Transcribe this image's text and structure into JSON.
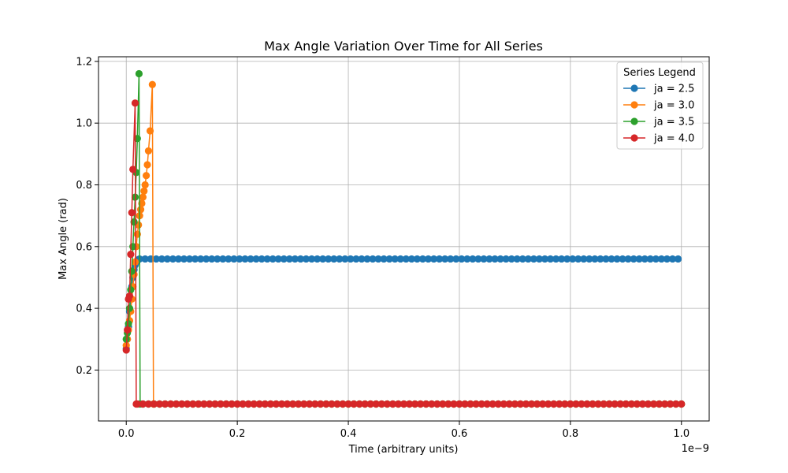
{
  "chart_data": {
    "type": "line",
    "title": "Max Angle Variation Over Time for All Series",
    "xlabel": "Time (arbitrary units)",
    "ylabel": "Max Angle (rad)",
    "x_offset_label": "1e−9",
    "xlim": [
      -0.05,
      1.05
    ],
    "ylim": [
      0.035,
      1.215
    ],
    "xticks": [
      0.0,
      0.2,
      0.4,
      0.6,
      0.8,
      1.0
    ],
    "xtick_labels": [
      "0.0",
      "0.2",
      "0.4",
      "0.6",
      "0.8",
      "1.0"
    ],
    "yticks": [
      0.2,
      0.4,
      0.6,
      0.8,
      1.0,
      1.2
    ],
    "ytick_labels": [
      "0.2",
      "0.4",
      "0.6",
      "0.8",
      "1.0",
      "1.2"
    ],
    "grid": true,
    "legend": {
      "title": "Series Legend",
      "placement": "top-right"
    },
    "series": [
      {
        "name": "ja = 2.5",
        "color": "#1f77b4",
        "points": [
          [
            0.0,
            0.27
          ],
          [
            0.002,
            0.3
          ],
          [
            0.004,
            0.34
          ],
          [
            0.006,
            0.39
          ],
          [
            0.008,
            0.43
          ],
          [
            0.01,
            0.47
          ],
          [
            0.012,
            0.5
          ],
          [
            0.014,
            0.525
          ],
          [
            0.016,
            0.54
          ],
          [
            0.018,
            0.55
          ],
          [
            0.02,
            0.555
          ],
          [
            0.022,
            0.558
          ]
        ],
        "plateau": {
          "x_start": 0.024,
          "x_end": 1.0,
          "step": 0.01,
          "y": 0.56
        }
      },
      {
        "name": "ja = 3.0",
        "color": "#ff7f0e",
        "points": [
          [
            0.0,
            0.28
          ],
          [
            0.002,
            0.3
          ],
          [
            0.004,
            0.33
          ],
          [
            0.006,
            0.36
          ],
          [
            0.008,
            0.39
          ],
          [
            0.01,
            0.43
          ],
          [
            0.012,
            0.47
          ],
          [
            0.014,
            0.51
          ],
          [
            0.016,
            0.55
          ],
          [
            0.018,
            0.6
          ],
          [
            0.02,
            0.64
          ],
          [
            0.022,
            0.67
          ],
          [
            0.024,
            0.7
          ],
          [
            0.026,
            0.72
          ],
          [
            0.028,
            0.74
          ],
          [
            0.03,
            0.76
          ],
          [
            0.032,
            0.78
          ],
          [
            0.034,
            0.8
          ],
          [
            0.036,
            0.83
          ],
          [
            0.038,
            0.865
          ],
          [
            0.04,
            0.91
          ],
          [
            0.043,
            0.975
          ],
          [
            0.047,
            1.125
          ],
          [
            0.049,
            0.09
          ]
        ],
        "plateau": {
          "x_start": 0.05,
          "x_end": 1.0,
          "step": 0.01,
          "y": 0.09
        }
      },
      {
        "name": "ja = 3.5",
        "color": "#2ca02c",
        "points": [
          [
            0.0,
            0.3
          ],
          [
            0.002,
            0.32
          ],
          [
            0.004,
            0.35
          ],
          [
            0.006,
            0.4
          ],
          [
            0.008,
            0.46
          ],
          [
            0.01,
            0.52
          ],
          [
            0.012,
            0.6
          ],
          [
            0.014,
            0.68
          ],
          [
            0.016,
            0.76
          ],
          [
            0.018,
            0.84
          ],
          [
            0.02,
            0.95
          ],
          [
            0.023,
            1.16
          ],
          [
            0.025,
            0.09
          ]
        ],
        "plateau": {
          "x_start": 0.03,
          "x_end": 1.0,
          "step": 0.01,
          "y": 0.09
        }
      },
      {
        "name": "ja = 4.0",
        "color": "#d62728",
        "points": [
          [
            0.0,
            0.265
          ],
          [
            0.002,
            0.33
          ],
          [
            0.004,
            0.43
          ],
          [
            0.006,
            0.44
          ],
          [
            0.008,
            0.575
          ],
          [
            0.01,
            0.71
          ],
          [
            0.012,
            0.85
          ],
          [
            0.016,
            1.065
          ],
          [
            0.018,
            0.09
          ]
        ],
        "plateau": {
          "x_start": 0.02,
          "x_end": 1.0,
          "step": 0.01,
          "y": 0.09
        }
      }
    ]
  }
}
